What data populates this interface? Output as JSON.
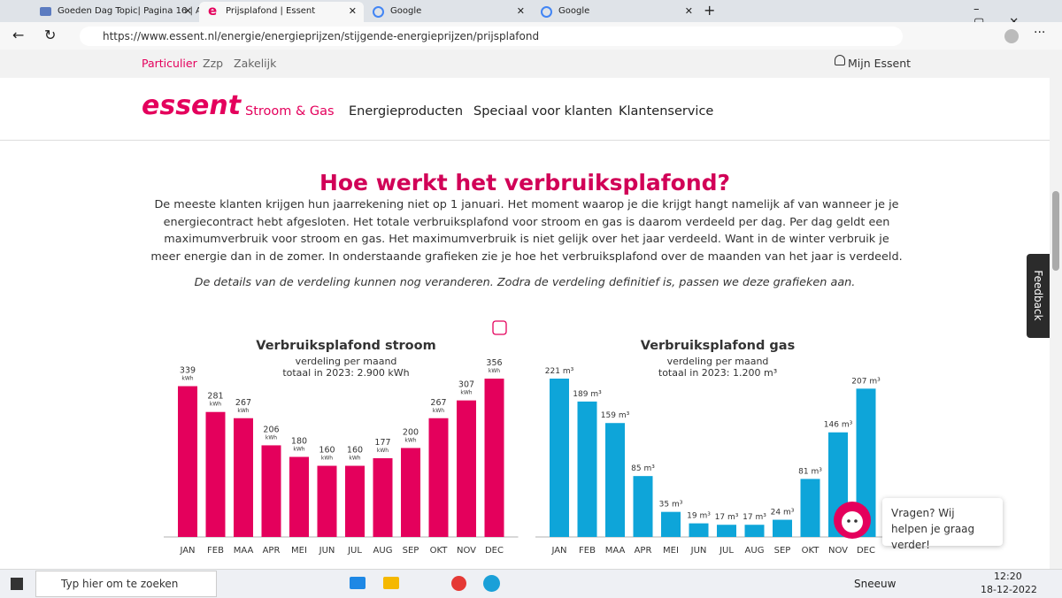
{
  "browser": {
    "tabs": [
      "Goeden Dag Topic| Pagina 16 | A",
      "Prijsplafond | Essent",
      "Google",
      "Google"
    ],
    "url": "https://www.essent.nl/energie/energieprijzen/stijgende-energieprijzen/prijsplafond"
  },
  "topnav": {
    "links": [
      "Particulier",
      "Zzp",
      "Zakelijk"
    ],
    "account": "Mijn Essent"
  },
  "mainnav": {
    "logo": "essent",
    "links": [
      "Stroom & Gas",
      "Energieproducten",
      "Speciaal voor klanten",
      "Klantenservice"
    ]
  },
  "content": {
    "heading": "Hoe werkt het verbruiksplafond?",
    "paragraph": "De meeste klanten krijgen hun jaarrekening niet op 1 januari. Het moment waarop je die krijgt hangt namelijk af van wanneer je je energiecontract hebt afgesloten. Het totale verbruiksplafond voor stroom en gas is daarom verdeeld per dag. Per dag geldt een maximumverbruik voor stroom en gas. Het maximumverbruik is niet gelijk over het jaar verdeeld. Want in de winter verbruik je meer energie dan in de zomer. In onderstaande grafieken zie je hoe het verbruiksplafond over de maanden van het jaar is verdeeld.",
    "note": "De details van de verdeling kunnen nog veranderen. Zodra de verdeling definitief is, passen we deze grafieken aan."
  },
  "chart_data": [
    {
      "type": "bar",
      "title": "Verbruiksplafond stroom",
      "subtitle": [
        "verdeling per maand",
        "totaal in 2023: 2.900 kWh"
      ],
      "categories": [
        "JAN",
        "FEB",
        "MAA",
        "APR",
        "MEI",
        "JUN",
        "JUL",
        "AUG",
        "SEP",
        "OKT",
        "NOV",
        "DEC"
      ],
      "values": [
        339,
        281,
        267,
        206,
        180,
        160,
        160,
        177,
        200,
        267,
        307,
        356
      ],
      "unit": "kWh",
      "color": "#e4005c"
    },
    {
      "type": "bar",
      "title": "Verbruiksplafond gas",
      "subtitle": [
        "verdeling per maand",
        "totaal in 2023: 1.200 m³"
      ],
      "categories": [
        "JAN",
        "FEB",
        "MAA",
        "APR",
        "MEI",
        "JUN",
        "JUL",
        "AUG",
        "SEP",
        "OKT",
        "NOV",
        "DEC"
      ],
      "values": [
        221,
        189,
        159,
        85,
        35,
        19,
        17,
        17,
        24,
        81,
        146,
        207
      ],
      "value_labels": [
        "221 m³",
        "189 m³",
        "159 m³",
        "85 m³",
        "35 m³",
        "19 m³",
        "17 m³",
        "17 m³",
        "24 m³",
        "81 m³",
        "146 m³",
        "207 m³"
      ],
      "color": "#0ea5d9"
    }
  ],
  "chat": {
    "text": "Vragen? Wij helpen je graag verder!"
  },
  "sidebar": {
    "feedback": "Feedback"
  },
  "taskbar": {
    "search": "Typ hier om te zoeken",
    "weather": "Sneeuw",
    "time": "12:20",
    "date": "18-12-2022"
  }
}
